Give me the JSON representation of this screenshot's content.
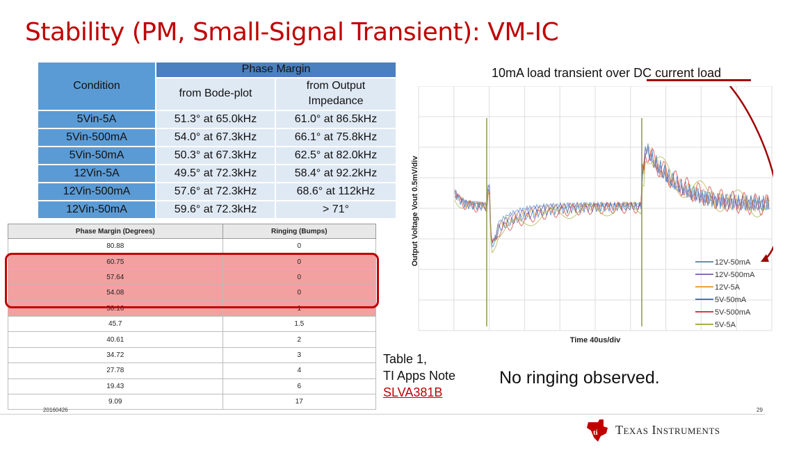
{
  "title": "Stability (PM, Small-Signal Transient): VM-IC",
  "pm_table": {
    "condition_header": "Condition",
    "phase_margin_header": "Phase Margin",
    "bode_header": "from Bode-plot",
    "output_header_1": "from Output",
    "output_header_2": "Impedance",
    "rows": [
      {
        "condition": "5Vin-5A",
        "bode": "51.3° at 65.0kHz",
        "output": "61.0° at 86.5kHz"
      },
      {
        "condition": "5Vin-500mA",
        "bode": "54.0° at 67.3kHz",
        "output": "66.1° at 75.8kHz"
      },
      {
        "condition": "5Vin-50mA",
        "bode": "50.3° at 67.3kHz",
        "output": "62.5° at 82.0kHz"
      },
      {
        "condition": "12Vin-5A",
        "bode": "49.5° at 72.3kHz",
        "output": "58.4° at 92.2kHz"
      },
      {
        "condition": "12Vin-500mA",
        "bode": "57.6° at 72.3kHz",
        "output": "68.6° at 112kHz"
      },
      {
        "condition": "12Vin-50mA",
        "bode": "59.6° at 72.3kHz",
        "output": "> 71°"
      }
    ]
  },
  "ringing_table": {
    "headers": [
      "Phase Margin (Degrees)",
      "Ringing (Bumps)"
    ],
    "rows": [
      [
        "80.88",
        "0"
      ],
      [
        "60.75",
        "0"
      ],
      [
        "57.64",
        "0"
      ],
      [
        "54.08",
        "0"
      ],
      [
        "50.16",
        "1"
      ],
      [
        "45.7",
        "1.5"
      ],
      [
        "40.61",
        "2"
      ],
      [
        "34.72",
        "3"
      ],
      [
        "27.78",
        "4"
      ],
      [
        "19.43",
        "6"
      ],
      [
        "9.09",
        "17"
      ]
    ],
    "highlighted_rows": [
      1,
      2,
      3,
      4
    ]
  },
  "scope": {
    "title": "10mA load transient over DC current load",
    "ylabel": "Output Voltage  Vout  0.5mV/div",
    "xlabel": "Time  40us/div",
    "legend": [
      {
        "name": "12V-50mA",
        "color": "#5a8fc8"
      },
      {
        "name": "12V-500mA",
        "color": "#8a6fb0"
      },
      {
        "name": "12V-5A",
        "color": "#e8a23a"
      },
      {
        "name": "5V-50mA",
        "color": "#3a78c0"
      },
      {
        "name": "5V-500mA",
        "color": "#d83a3a"
      },
      {
        "name": "5V-5A",
        "color": "#a8b040"
      }
    ]
  },
  "note": {
    "line1": "Table 1,",
    "line2": "TI Apps Note",
    "link": "SLVA381B"
  },
  "conclusion": "No ringing observed.",
  "footer": {
    "date": "20160426",
    "page": "29",
    "logo_text": "Texas Instruments"
  }
}
